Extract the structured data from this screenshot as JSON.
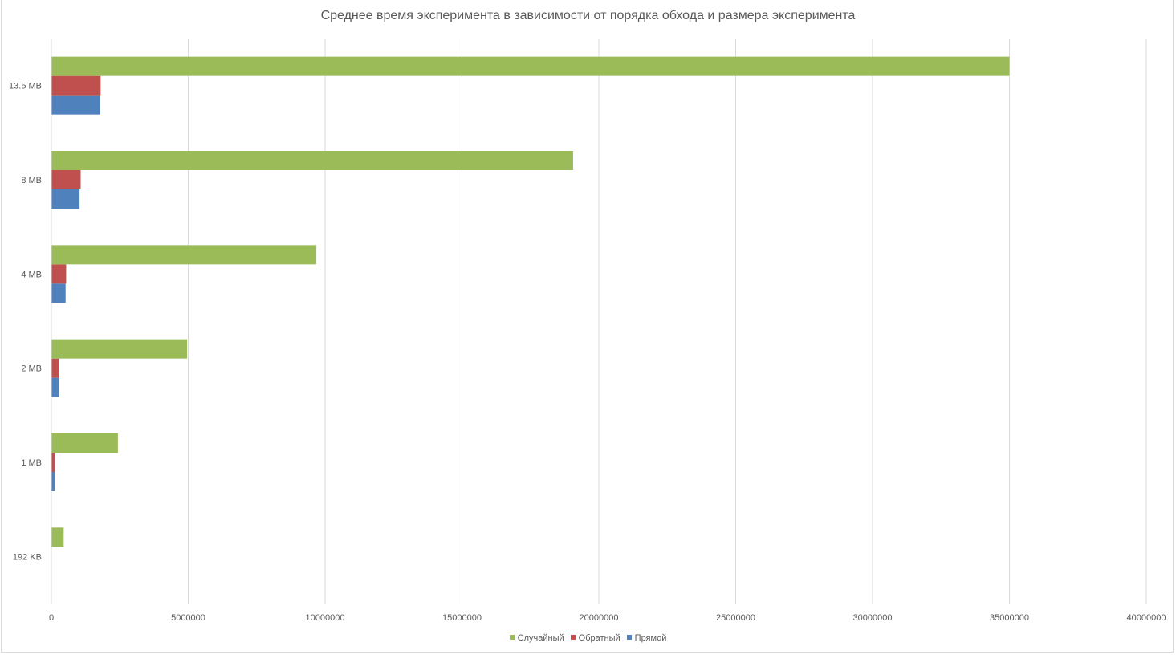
{
  "chart_data": {
    "type": "bar",
    "orientation": "horizontal",
    "title": "Среднее время эксперимента в зависимости от порядка обхода и размера эксперимента",
    "xlabel": "",
    "ylabel": "",
    "categories": [
      "192 KB",
      "1 MB",
      "2 MB",
      "4 MB",
      "8 MB",
      "13.5 MB"
    ],
    "series": [
      {
        "name": "Прямой",
        "color": "#4f81bd",
        "values": [
          0,
          130000,
          270000,
          520000,
          1030000,
          1780000
        ]
      },
      {
        "name": "Обратный",
        "color": "#c0504d",
        "values": [
          0,
          130000,
          280000,
          540000,
          1070000,
          1800000
        ]
      },
      {
        "name": "Случайный",
        "color": "#9bbb59",
        "values": [
          450000,
          2430000,
          4960000,
          9680000,
          19060000,
          35000000
        ]
      }
    ],
    "xlim": [
      0,
      40000000
    ],
    "xticks": [
      "0",
      "5000000",
      "10000000",
      "15000000",
      "20000000",
      "25000000",
      "30000000",
      "35000000",
      "40000000"
    ],
    "grid": true,
    "legend_position": "bottom",
    "legend_order": [
      "Случайный",
      "Обратный",
      "Прямой"
    ]
  }
}
